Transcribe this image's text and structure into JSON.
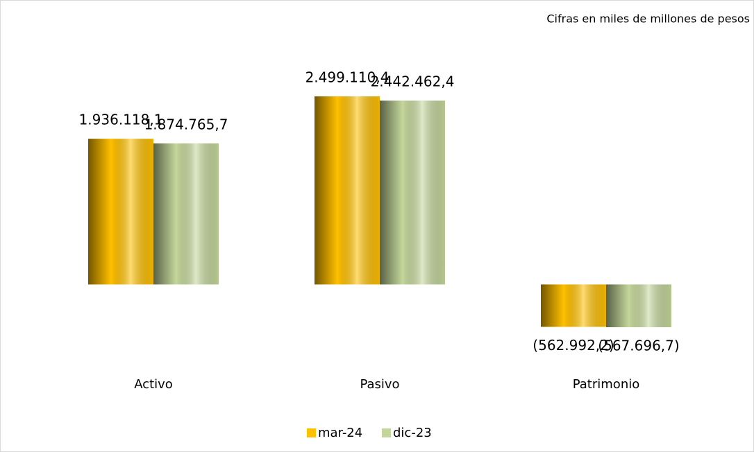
{
  "chart_data": {
    "type": "bar",
    "subtitle": "Cifras en miles de millones de pesos",
    "categories": [
      "Activo",
      "Pasivo",
      "Patrimonio"
    ],
    "series": [
      {
        "name": "mar-24",
        "color": "#ffc000",
        "values": [
          1936118.1,
          2499110.4,
          -562992.2
        ],
        "value_labels": [
          "1.936.118,1",
          "2.499.110,4",
          "(562.992,2)"
        ]
      },
      {
        "name": "dic-23",
        "color": "#c4d79b",
        "values": [
          1874765.7,
          2442462.4,
          -567696.7
        ],
        "value_labels": [
          "1.874.765,7",
          "2.442.462,4",
          "(567.696,7)"
        ]
      }
    ],
    "legend": "bottom"
  }
}
